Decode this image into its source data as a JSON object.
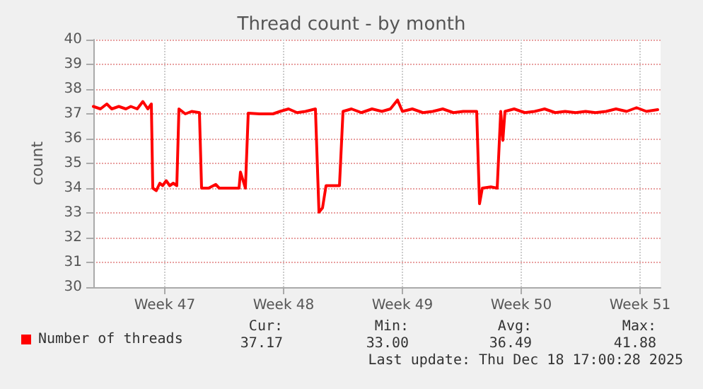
{
  "chart_data": {
    "type": "line",
    "title": "Thread count - by month",
    "ylabel": "count",
    "x": [
      "2025-11-15T07:00",
      "2025-11-15T17:00",
      "2025-11-16T02:00",
      "2025-11-16T09:00",
      "2025-11-16T19:00",
      "2025-11-17T05:00",
      "2025-11-17T12:00",
      "2025-11-17T21:00",
      "2025-11-18T05:00",
      "2025-11-18T12:00",
      "2025-11-18T17:00",
      "2025-11-18T19:00",
      "2025-11-19T00:00",
      "2025-11-19T05:00",
      "2025-11-19T09:00",
      "2025-11-19T14:00",
      "2025-11-19T19:00",
      "2025-11-20T00:00",
      "2025-11-20T05:00",
      "2025-11-20T08:00",
      "2025-11-20T17:00",
      "2025-11-21T02:00",
      "2025-11-21T13:00",
      "2025-11-21T16:00",
      "2025-11-22T02:00",
      "2025-11-22T12:00",
      "2025-11-22T17:00",
      "2025-11-23T07:00",
      "2025-11-23T21:00",
      "2025-11-23T23:00",
      "2025-11-24T06:00",
      "2025-11-24T10:00",
      "2025-11-25T02:00",
      "2025-11-25T21:00",
      "2025-11-26T07:00",
      "2025-11-26T19:00",
      "2025-11-27T07:00",
      "2025-11-27T19:00",
      "2025-11-28T09:00",
      "2025-11-28T14:00",
      "2025-11-28T19:00",
      "2025-11-29T00:00",
      "2025-11-29T09:00",
      "2025-11-29T19:00",
      "2025-11-30T00:00",
      "2025-11-30T12:00",
      "2025-12-01T02:00",
      "2025-12-01T17:00",
      "2025-12-02T07:00",
      "2025-12-02T19:00",
      "2025-12-03T05:00",
      "2025-12-03T12:00",
      "2025-12-04T02:00",
      "2025-12-04T17:00",
      "2025-12-05T07:00",
      "2025-12-05T21:00",
      "2025-12-06T12:00",
      "2025-12-07T02:00",
      "2025-12-07T21:00",
      "2025-12-08T01:00",
      "2025-12-08T05:00",
      "2025-12-08T17:00",
      "2025-12-09T02:00",
      "2025-12-09T07:00",
      "2025-12-09T10:00",
      "2025-12-09T13:00",
      "2025-12-10T02:00",
      "2025-12-10T17:00",
      "2025-12-11T07:00",
      "2025-12-11T21:00",
      "2025-12-12T12:00",
      "2025-12-13T02:00",
      "2025-12-13T17:00",
      "2025-12-14T07:00",
      "2025-12-14T21:00",
      "2025-12-15T12:00",
      "2025-12-16T02:00",
      "2025-12-16T17:00",
      "2025-12-17T07:00",
      "2025-12-17T21:00",
      "2025-12-18T13:00"
    ],
    "series": [
      {
        "name": "Number of threads",
        "color": "#ff0000",
        "values": [
          37.3,
          37.2,
          37.4,
          37.2,
          37.3,
          37.2,
          37.3,
          37.2,
          37.5,
          37.2,
          37.4,
          34.0,
          33.9,
          34.2,
          34.1,
          34.3,
          34.1,
          34.2,
          34.1,
          37.2,
          37.0,
          37.1,
          37.05,
          34.0,
          34.0,
          34.15,
          34.0,
          34.0,
          34.0,
          34.65,
          34.0,
          37.03,
          37.0,
          37.0,
          37.1,
          37.2,
          37.05,
          37.1,
          37.2,
          33.03,
          33.2,
          34.1,
          34.1,
          34.1,
          37.1,
          37.2,
          37.05,
          37.2,
          37.1,
          37.2,
          37.56,
          37.1,
          37.2,
          37.05,
          37.1,
          37.2,
          37.05,
          37.1,
          37.1,
          33.37,
          34.0,
          34.05,
          34.0,
          37.1,
          35.93,
          37.1,
          37.2,
          37.05,
          37.1,
          37.2,
          37.05,
          37.1,
          37.05,
          37.1,
          37.05,
          37.1,
          37.2,
          37.1,
          37.25,
          37.1,
          37.17
        ]
      }
    ],
    "xlim": [
      "2025-11-15T07:00",
      "2025-12-18T17:00"
    ],
    "xticks": [
      {
        "value": "2025-11-19T12:00",
        "label": "Week 47"
      },
      {
        "value": "2025-11-26T12:00",
        "label": "Week 48"
      },
      {
        "value": "2025-12-03T12:00",
        "label": "Week 49"
      },
      {
        "value": "2025-12-10T12:00",
        "label": "Week 50"
      },
      {
        "value": "2025-12-17T12:00",
        "label": "Week 51"
      }
    ],
    "ylim": [
      30,
      40
    ],
    "yticks": [
      30,
      31,
      32,
      33,
      34,
      35,
      36,
      37,
      38,
      39,
      40
    ],
    "grid": true,
    "legend": "bottom left",
    "marker": "none",
    "line_style": "solid",
    "annotations": [
      "Cur:",
      "Min:",
      "Avg:",
      "Max:",
      "37.17",
      "33.00",
      "36.49",
      "41.88",
      "Last update: Thu Dec 18 17:00:28 2025"
    ]
  }
}
